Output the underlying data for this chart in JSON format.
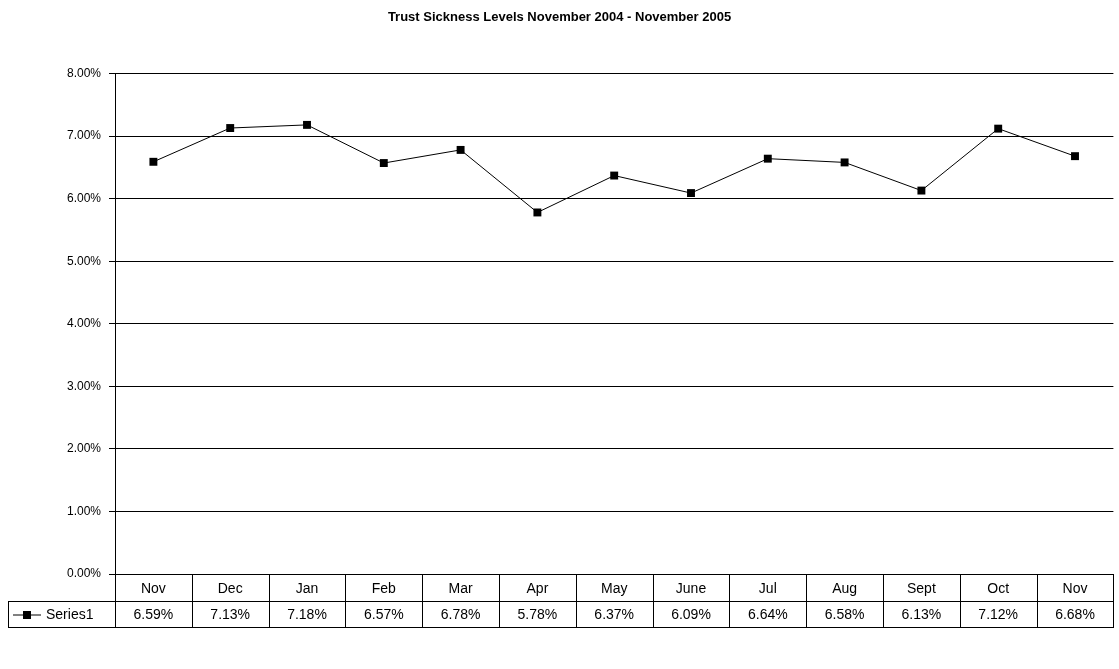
{
  "chart_data": {
    "type": "line",
    "title": "Trust Sickness Levels November 2004 - November 2005",
    "categories": [
      "Nov",
      "Dec",
      "Jan",
      "Feb",
      "Mar",
      "Apr",
      "May",
      "June",
      "Jul",
      "Aug",
      "Sept",
      "Oct",
      "Nov"
    ],
    "series": [
      {
        "name": "Series1",
        "color": "#000000",
        "values": [
          6.59,
          7.13,
          7.18,
          6.57,
          6.78,
          5.78,
          6.37,
          6.09,
          6.64,
          6.58,
          6.13,
          7.12,
          6.68
        ],
        "value_labels": [
          "6.59%",
          "7.13%",
          "7.18%",
          "6.57%",
          "6.78%",
          "5.78%",
          "6.37%",
          "6.09%",
          "6.64%",
          "6.58%",
          "6.13%",
          "7.12%",
          "6.68%"
        ]
      }
    ],
    "ylim": [
      0,
      8
    ],
    "yticks": [
      {
        "value": 0,
        "label": "0.00%"
      },
      {
        "value": 1,
        "label": "1.00%"
      },
      {
        "value": 2,
        "label": "2.00%"
      },
      {
        "value": 3,
        "label": "3.00%"
      },
      {
        "value": 4,
        "label": "4.00%"
      },
      {
        "value": 5,
        "label": "5.00%"
      },
      {
        "value": 6,
        "label": "6.00%"
      },
      {
        "value": 7,
        "label": "7.00%"
      },
      {
        "value": 8,
        "label": "8.00%"
      }
    ],
    "grid": "y",
    "legend": "bottom left",
    "marker": "square",
    "line_style": "solid"
  }
}
